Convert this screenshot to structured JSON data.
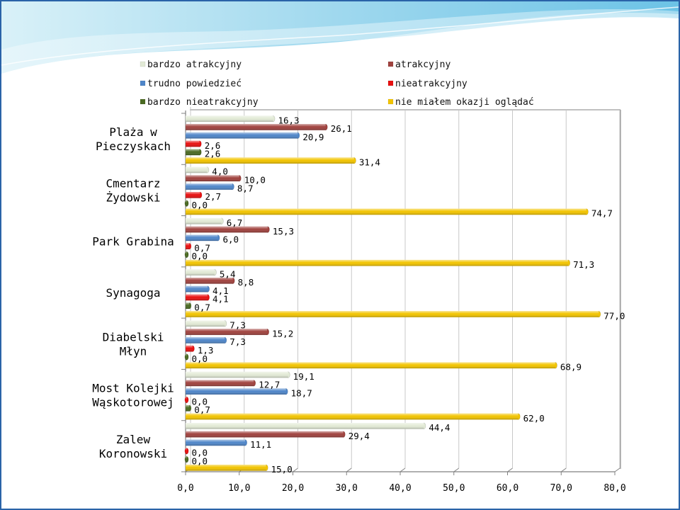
{
  "colors": {
    "border": "#2a63a8",
    "wave_light": "#bfe6f4",
    "wave_mid": "#7cc9e8",
    "grid": "#c8c8c8",
    "axis": "#808080"
  },
  "chart_data": {
    "type": "bar",
    "orientation": "horizontal",
    "categories": [
      "Plaża w\nPieczyskach",
      "Cmentarz\nŻydowski",
      "Park Grabina",
      "Synagoga",
      "Diabelski\nMłyn",
      "Most Kolejki\nWąskotorowej",
      "Zalew\nKoronowski"
    ],
    "series": [
      {
        "name": "bardzo atrakcyjny",
        "color": "#e2ead6",
        "values": [
          16.3,
          4.0,
          6.7,
          5.4,
          7.3,
          19.1,
          44.4
        ],
        "labels": [
          "16,3",
          "4,0",
          "6,7",
          "5,4",
          "7,3",
          "19,1",
          "44,4"
        ]
      },
      {
        "name": "atrakcyjny",
        "color": "#a0423e",
        "values": [
          26.1,
          10.0,
          15.3,
          8.8,
          15.2,
          12.7,
          29.4
        ],
        "labels": [
          "26,1",
          "10,0",
          "15,3",
          "8,8",
          "15,2",
          "12,7",
          "29,4"
        ]
      },
      {
        "name": "trudno powiedzieć",
        "color": "#4f86c9",
        "values": [
          20.9,
          8.7,
          6.0,
          4.1,
          7.3,
          18.7,
          11.1
        ],
        "labels": [
          "20,9",
          "8,7",
          "6,0",
          "4,1",
          "7,3",
          "18,7",
          "11,1"
        ]
      },
      {
        "name": "nieatrakcyjny",
        "color": "#e81010",
        "values": [
          2.6,
          2.7,
          0.7,
          4.1,
          1.3,
          0.0,
          0.0
        ],
        "labels": [
          "2,6",
          "2,7",
          "0,7",
          "4,1",
          "1,3",
          "0,0",
          "0,0"
        ]
      },
      {
        "name": "bardzo nieatrakcyjny",
        "color": "#4a6a22",
        "values": [
          2.6,
          0.0,
          0.0,
          0.7,
          0.0,
          0.7,
          0.0
        ],
        "labels": [
          "2,6",
          "0,0",
          "0,0",
          "0,7",
          "0,0",
          "0,7",
          "0,0"
        ]
      },
      {
        "name": "nie miałem okazji oglądać",
        "color": "#f2c400",
        "values": [
          31.4,
          74.7,
          71.3,
          77.0,
          68.9,
          62.0,
          15.0
        ],
        "labels": [
          "31,4",
          "74,7",
          "71,3",
          "77,0",
          "68,9",
          "62,0",
          "15,0"
        ]
      }
    ],
    "xlim": [
      0,
      80
    ],
    "xticks": [
      "0,0",
      "10,0",
      "20,0",
      "30,0",
      "40,0",
      "50,0",
      "60,0",
      "70,0",
      "80,0"
    ],
    "grid": true,
    "legend_position": "top",
    "title": "",
    "xlabel": "",
    "ylabel": ""
  }
}
